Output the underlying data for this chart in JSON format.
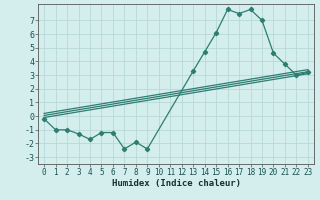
{
  "xlabel": "Humidex (Indice chaleur)",
  "bg_color": "#d4eeee",
  "grid_color": "#b8d8d8",
  "line_color": "#2e7d70",
  "xlim": [
    -0.5,
    23.5
  ],
  "ylim": [
    -3.5,
    8.2
  ],
  "xticks": [
    0,
    1,
    2,
    3,
    4,
    5,
    6,
    7,
    8,
    9,
    10,
    11,
    12,
    13,
    14,
    15,
    16,
    17,
    18,
    19,
    20,
    21,
    22,
    23
  ],
  "yticks": [
    -3,
    -2,
    -1,
    0,
    1,
    2,
    3,
    4,
    5,
    6,
    7
  ],
  "curve1_x": [
    0,
    1,
    2,
    3,
    4,
    5,
    6,
    7,
    8,
    9,
    13,
    14,
    15,
    16,
    17,
    18,
    19,
    20,
    21,
    22,
    23
  ],
  "curve1_y": [
    -0.2,
    -1.0,
    -1.0,
    -1.3,
    -1.7,
    -1.2,
    -1.2,
    -2.4,
    -1.9,
    -2.4,
    3.3,
    4.7,
    6.1,
    7.8,
    7.5,
    7.8,
    7.0,
    4.6,
    3.8,
    3.0,
    3.2
  ],
  "line2_x": [
    0,
    23
  ],
  "line2_y": [
    -0.1,
    3.1
  ],
  "line3_x": [
    0,
    23
  ],
  "line3_y": [
    0.05,
    3.25
  ],
  "line4_x": [
    0,
    23
  ],
  "line4_y": [
    0.2,
    3.4
  ],
  "xlabel_fontsize": 6.5,
  "tick_fontsize": 5.5
}
